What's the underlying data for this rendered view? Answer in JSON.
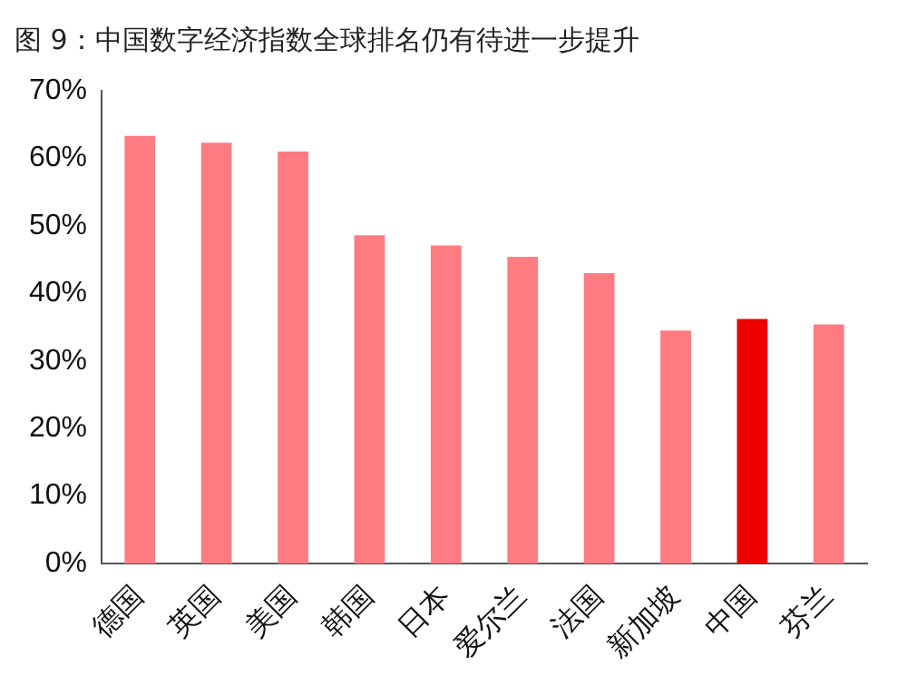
{
  "chart_data": {
    "type": "bar",
    "title": "图 9：中国数字经济指数全球排名仍有待进一步提升",
    "categories": [
      "德国",
      "英国",
      "美国",
      "韩国",
      "日本",
      "爱尔兰",
      "法国",
      "新加坡",
      "中国",
      "芬兰"
    ],
    "values": [
      63.3,
      62.3,
      61.0,
      48.6,
      47.1,
      45.4,
      43.0,
      34.5,
      36.2,
      35.4
    ],
    "colors": [
      "#ff7b82",
      "#ff7b82",
      "#ff7b82",
      "#ff7b82",
      "#ff7b82",
      "#ff7b82",
      "#ff7b82",
      "#ff7b82",
      "#ee0000",
      "#ff7b82"
    ],
    "ylim": [
      0,
      70
    ],
    "yticks": [
      {
        "value": 0,
        "label": "0%"
      },
      {
        "value": 10,
        "label": "10%"
      },
      {
        "value": 20,
        "label": "20%"
      },
      {
        "value": 30,
        "label": "30%"
      },
      {
        "value": 40,
        "label": "40%"
      },
      {
        "value": 50,
        "label": "50%"
      },
      {
        "value": 60,
        "label": "60%"
      },
      {
        "value": 70,
        "label": "70%"
      }
    ],
    "grid": false,
    "legend": false
  }
}
